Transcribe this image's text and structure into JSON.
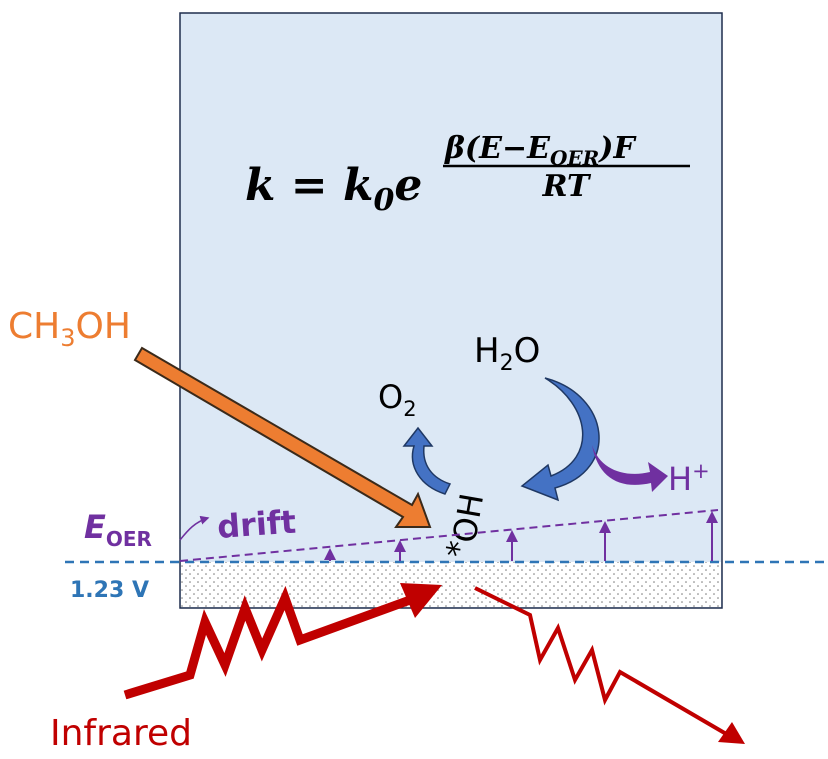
{
  "equation": {
    "lhs": "k = k",
    "lhs_sub": "0",
    "base": "e",
    "numerator": "β(E−E",
    "numerator_sub": "OER",
    "numerator_tail": ")F",
    "denominator": "RT"
  },
  "labels": {
    "methanol": {
      "main": "CH",
      "sub": "3",
      "tail": "OH"
    },
    "water": {
      "main": "H",
      "sub": "2",
      "tail": "O"
    },
    "oxygen": {
      "main": "O",
      "sub": "2"
    },
    "proton": {
      "main": "H",
      "sup": "+"
    },
    "hydroxyl": {
      "star": "*",
      "main": "OH"
    },
    "e_oer": {
      "main": "E",
      "sub": "OER"
    },
    "drift": "drift",
    "potential": "1.23 V",
    "infrared": "Infrared"
  }
}
